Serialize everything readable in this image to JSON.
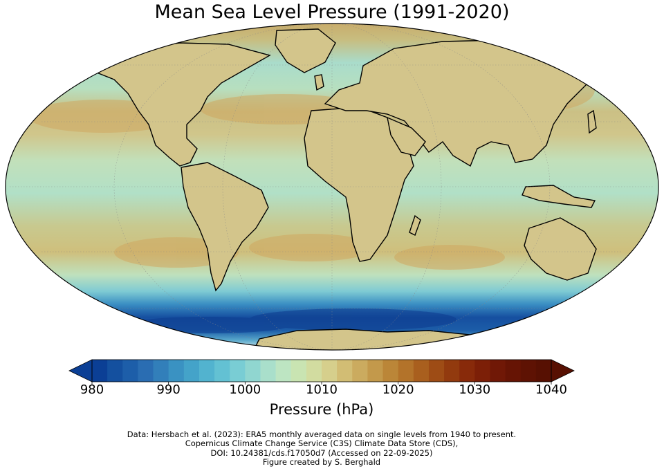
{
  "figure": {
    "title": "Mean Sea Level Pressure (1991-2020)",
    "projection": "mollweide",
    "grid": true
  },
  "colorbar": {
    "label": "Pressure (hPa)",
    "min": 980,
    "max": 1040,
    "step": 2,
    "ticks": [
      "980",
      "990",
      "1000",
      "1010",
      "1020",
      "1030",
      "1040"
    ],
    "extend": "both",
    "colors": [
      "#0b3f95",
      "#14509f",
      "#1d5ea9",
      "#2a6db2",
      "#327fba",
      "#3a92c2",
      "#44a3c9",
      "#52b3cf",
      "#63c1d3",
      "#79cdd4",
      "#90d6d0",
      "#a9dfcb",
      "#bde5c2",
      "#c9e4b2",
      "#d2dca0",
      "#d6cf8c",
      "#d2bd74",
      "#cbab5f",
      "#c3994b",
      "#bb8638",
      "#b3732a",
      "#a95f1e",
      "#9e4c15",
      "#923a0e",
      "#882a0a",
      "#7c1f07",
      "#701806",
      "#661404",
      "#5e1203",
      "#571002"
    ]
  },
  "credits": {
    "line1": "Data: Hersbach et al. (2023): ERA5 monthly averaged data on single levels from 1940 to present.",
    "line2": "Copernicus Climate Change Service (C3S) Climate Data Store (CDS),",
    "line3": "DOI: 10.24381/cds.f17050d7 (Accessed on 22-09-2025)",
    "line4": "Figure created by S. Berghald"
  }
}
